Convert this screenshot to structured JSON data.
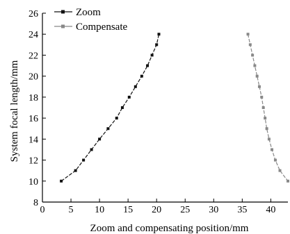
{
  "chart_data": {
    "type": "line",
    "title": "",
    "xlabel": "Zoom and compensating position/mm",
    "ylabel": "System focal length/mm",
    "xlim": [
      0,
      43
    ],
    "ylim": [
      8,
      26
    ],
    "x_ticks": [
      0,
      5,
      10,
      15,
      20,
      25,
      30,
      35,
      40
    ],
    "y_ticks": [
      8,
      10,
      12,
      14,
      16,
      18,
      20,
      22,
      24,
      26
    ],
    "grid": false,
    "legend_position": "top-left",
    "series": [
      {
        "name": "Zoom",
        "color": "#111111",
        "marker": "square",
        "line_style": "dashed",
        "points": [
          {
            "x": 3.3,
            "y": 10
          },
          {
            "x": 5.8,
            "y": 11
          },
          {
            "x": 7.2,
            "y": 12
          },
          {
            "x": 8.6,
            "y": 13
          },
          {
            "x": 10.0,
            "y": 14
          },
          {
            "x": 11.5,
            "y": 15
          },
          {
            "x": 13.0,
            "y": 16
          },
          {
            "x": 14.0,
            "y": 17
          },
          {
            "x": 15.2,
            "y": 18
          },
          {
            "x": 16.3,
            "y": 19
          },
          {
            "x": 17.4,
            "y": 20
          },
          {
            "x": 18.4,
            "y": 21
          },
          {
            "x": 19.2,
            "y": 22
          },
          {
            "x": 20.0,
            "y": 23
          },
          {
            "x": 20.4,
            "y": 24
          }
        ]
      },
      {
        "name": "Compensate",
        "color": "#888888",
        "marker": "square",
        "line_style": "dashed",
        "points": [
          {
            "x": 36.0,
            "y": 24
          },
          {
            "x": 36.4,
            "y": 23
          },
          {
            "x": 36.8,
            "y": 22
          },
          {
            "x": 37.2,
            "y": 21
          },
          {
            "x": 37.6,
            "y": 20
          },
          {
            "x": 38.0,
            "y": 19
          },
          {
            "x": 38.4,
            "y": 18
          },
          {
            "x": 38.7,
            "y": 17
          },
          {
            "x": 39.0,
            "y": 16
          },
          {
            "x": 39.3,
            "y": 15
          },
          {
            "x": 39.7,
            "y": 14
          },
          {
            "x": 40.2,
            "y": 13
          },
          {
            "x": 40.8,
            "y": 12
          },
          {
            "x": 41.6,
            "y": 11
          },
          {
            "x": 43.0,
            "y": 10
          }
        ]
      }
    ]
  }
}
